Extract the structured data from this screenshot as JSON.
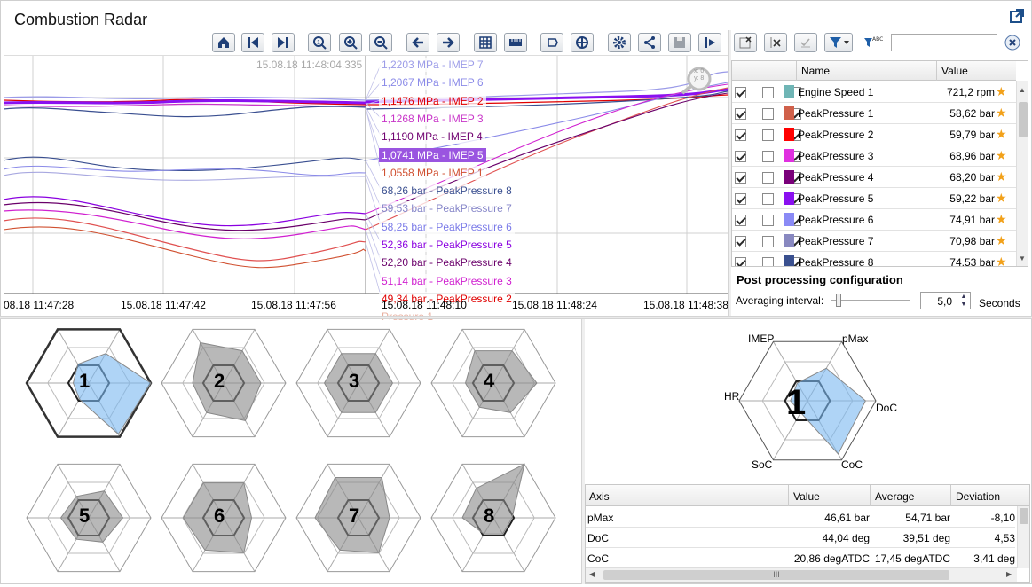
{
  "window": {
    "title": "Combustion Radar"
  },
  "toolbar": {
    "buttons": [
      "home-icon",
      "first-icon",
      "last-icon",
      "zoom-fit-icon",
      "zoom-in-icon",
      "zoom-out-icon",
      "pan-left-icon",
      "pan-right-icon",
      "grid-icon",
      "ruler-icon",
      "label-icon",
      "crosshair-icon",
      "settings-icon",
      "share-icon",
      "save-icon",
      "export-icon"
    ]
  },
  "chart": {
    "cursor_time": "15.08.18 11:48:04.335",
    "magnifier": {
      "x": "x: 0",
      "y": "y: 8"
    },
    "time_ticks": [
      "08.18 11:47:28",
      "15.08.18 11:47:42",
      "15.08.18 11:47:56",
      "15.08.18 11:48:10",
      "15.08.18 11:48:24",
      "15.08.18 11:48:38"
    ],
    "labels": [
      {
        "text": "1,2203 MPa - IMEP 7",
        "color": "#9c9ce8"
      },
      {
        "text": "1,2067 MPa - IMEP 6",
        "color": "#8a8ae8"
      },
      {
        "text": "1,1476 MPa - IMEP 2",
        "color": "#e00000"
      },
      {
        "text": "1,1268 MPa - IMEP 3",
        "color": "#c834c8"
      },
      {
        "text": "1,1190 MPa - IMEP 4",
        "color": "#700070"
      },
      {
        "text": "1,0741 MPa - IMEP 5",
        "color": "#ffffff",
        "bg": "#9a55e0"
      },
      {
        "text": "1,0558 MPa - IMEP 1",
        "color": "#d05030"
      },
      {
        "text": "68,26 bar - PeakPressure 8",
        "color": "#3a4f90"
      },
      {
        "text": "59,53 bar - PeakPressure 7",
        "color": "#8585c8"
      },
      {
        "text": "58,25 bar - PeakPressure 6",
        "color": "#7a7ae8"
      },
      {
        "text": "52,36 bar - PeakPressure 5",
        "color": "#8a00e0"
      },
      {
        "text": "52,20 bar - PeakPressure 4",
        "color": "#6a006a"
      },
      {
        "text": "51,14 bar - PeakPressure 3",
        "color": "#d020d0"
      },
      {
        "text": "49,34 bar - PeakPressure 2",
        "color": "#e00000"
      },
      {
        "text": "Pressure 1",
        "color": "#e8b0a0"
      }
    ]
  },
  "side_toolbar": {
    "search_value": "",
    "buttons": [
      "clear-icon",
      "remove-icon",
      "check-icon",
      "filter-dropdown-icon",
      "abc-filter-icon",
      "search-clear-icon"
    ]
  },
  "channels": {
    "headers": [
      "Name",
      "Value"
    ],
    "rows": [
      {
        "name": "Engine Speed 1",
        "value": "721,2 rpm",
        "color": "#6fb5b5",
        "c1": true,
        "c2": false,
        "c3": false
      },
      {
        "name": "PeakPressure 1",
        "value": "58,62 bar",
        "color": "#d0604a",
        "c1": true,
        "c2": false,
        "c3": true
      },
      {
        "name": "PeakPressure 2",
        "value": "59,79 bar",
        "color": "#ff0000",
        "c1": true,
        "c2": false,
        "c3": true
      },
      {
        "name": "PeakPressure 3",
        "value": "68,96 bar",
        "color": "#e030e0",
        "c1": true,
        "c2": false,
        "c3": true
      },
      {
        "name": "PeakPressure 4",
        "value": "68,20 bar",
        "color": "#7a007a",
        "c1": true,
        "c2": false,
        "c3": true
      },
      {
        "name": "PeakPressure 5",
        "value": "59,22 bar",
        "color": "#8a10f0",
        "c1": true,
        "c2": false,
        "c3": true
      },
      {
        "name": "PeakPressure 6",
        "value": "74,91 bar",
        "color": "#8a8af5",
        "c1": true,
        "c2": false,
        "c3": true
      },
      {
        "name": "PeakPressure 7",
        "value": "70,98 bar",
        "color": "#8888c0",
        "c1": true,
        "c2": false,
        "c3": true
      },
      {
        "name": "PeakPressure 8",
        "value": "74,53 bar",
        "color": "#3a508f",
        "c1": true,
        "c2": false,
        "c3": true
      }
    ]
  },
  "post": {
    "title": "Post processing configuration",
    "label": "Averaging interval:",
    "value": "5,0",
    "unit": "Seconds"
  },
  "cylinders": [
    "1",
    "2",
    "3",
    "4",
    "5",
    "6",
    "7",
    "8"
  ],
  "big_radar": {
    "number": "1",
    "axes": [
      "pMax",
      "DoC",
      "CoC",
      "SoC",
      "HR",
      "IMEP"
    ]
  },
  "table": {
    "headers": [
      "Axis",
      "Value",
      "Average",
      "Deviation"
    ],
    "rows": [
      [
        "pMax",
        "46,61 bar",
        "54,71 bar",
        "-8,10"
      ],
      [
        "DoC",
        "44,04 deg",
        "39,51 deg",
        "4,53"
      ],
      [
        "CoC",
        "20,86 degATDC",
        "17,45 degATDC",
        "3,41 deg"
      ]
    ],
    "scroll_grip": "III"
  }
}
